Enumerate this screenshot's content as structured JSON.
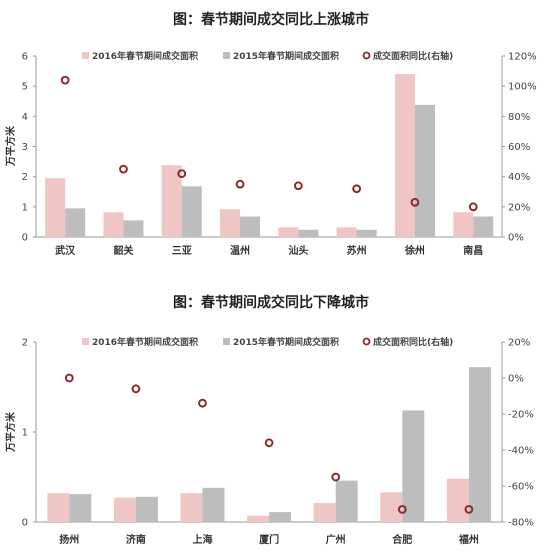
{
  "chart_data": [
    {
      "type": "bar",
      "title": "图：春节期间成交同比上涨城市",
      "categories": [
        "武汉",
        "韶关",
        "三亚",
        "温州",
        "汕头",
        "苏州",
        "徐州",
        "南昌"
      ],
      "series": [
        {
          "name": "2016年春节期间成交面积",
          "kind": "bar",
          "axis": "left",
          "color": "#efc6c3",
          "values": [
            1.95,
            0.82,
            2.38,
            0.92,
            0.32,
            0.32,
            5.4,
            0.82
          ]
        },
        {
          "name": "2015年春节期间成交面积",
          "kind": "bar",
          "axis": "left",
          "color": "#bdbdbd",
          "values": [
            0.95,
            0.55,
            1.68,
            0.68,
            0.24,
            0.24,
            4.38,
            0.68
          ]
        },
        {
          "name": "成交面积同比(右轴)",
          "kind": "scatter",
          "axis": "right",
          "color": "#8b2c2c",
          "values": [
            104,
            45,
            42,
            35,
            34,
            32,
            23,
            20
          ]
        }
      ],
      "ylabel": "万平方米",
      "ylim": [
        0,
        6
      ],
      "yticks": [
        "0",
        "1",
        "2",
        "3",
        "4",
        "5",
        "6"
      ],
      "y2lim": [
        0,
        120
      ],
      "y2ticks": [
        "0%",
        "20%",
        "40%",
        "60%",
        "80%",
        "100%",
        "120%"
      ],
      "grid": false,
      "legend": "top"
    },
    {
      "type": "bar",
      "title": "图：春节期间成交同比下降城市",
      "categories": [
        "扬州",
        "济南",
        "上海",
        "厦门",
        "广州",
        "合肥",
        "福州"
      ],
      "series": [
        {
          "name": "2016年春节期间成交面积",
          "kind": "bar",
          "axis": "left",
          "color": "#efc6c3",
          "values": [
            0.32,
            0.27,
            0.32,
            0.07,
            0.21,
            0.33,
            0.48
          ]
        },
        {
          "name": "2015年春节期间成交面积",
          "kind": "bar",
          "axis": "left",
          "color": "#bdbdbd",
          "values": [
            0.31,
            0.28,
            0.38,
            0.11,
            0.46,
            1.24,
            1.72
          ]
        },
        {
          "name": "成交面积同比(右轴)",
          "kind": "scatter",
          "axis": "right",
          "color": "#8b2c2c",
          "values": [
            0,
            -6,
            -14,
            -36,
            -55,
            -73,
            -73
          ]
        }
      ],
      "ylabel": "万平方米",
      "ylim": [
        0,
        2
      ],
      "yticks": [
        "0",
        "1",
        "2"
      ],
      "y2lim": [
        -80,
        20
      ],
      "y2ticks": [
        "-80%",
        "-60%",
        "-40%",
        "-20%",
        "0%",
        "20%"
      ],
      "grid": false,
      "legend": "top"
    }
  ]
}
